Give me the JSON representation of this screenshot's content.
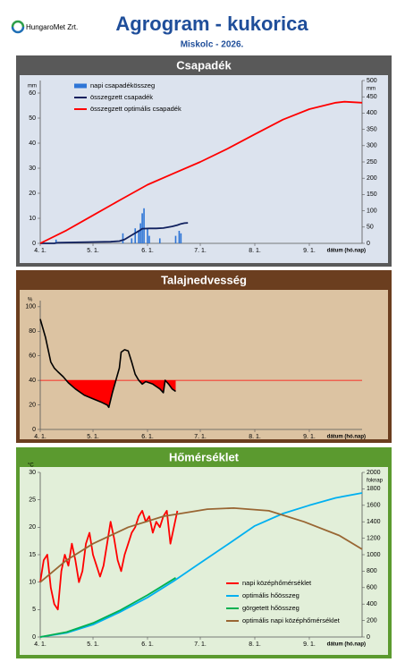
{
  "header": {
    "logo": "HungaroMet Zrt.",
    "title": "Agrogram - kukorica",
    "subtitle": "Miskolc - 2026."
  },
  "chart_data": [
    {
      "type": "combo",
      "title": "Csapadék",
      "header_color": "#595959",
      "plot_color": "#dce3ee",
      "ylabel": "mm",
      "y2label": "mm",
      "xlabel": "dátum (hó.nap)",
      "legend": "upper left",
      "xlim": [
        0,
        183
      ],
      "xticks": [
        {
          "value": 0,
          "label": "4. 1."
        },
        {
          "value": 30,
          "label": "5. 1."
        },
        {
          "value": 61,
          "label": "6. 1."
        },
        {
          "value": 91,
          "label": "7. 1."
        },
        {
          "value": 122,
          "label": "8. 1."
        },
        {
          "value": 153,
          "label": "9. 1."
        }
      ],
      "ylim": [
        0,
        65
      ],
      "yticks": [
        0,
        10,
        20,
        30,
        40,
        50,
        60
      ],
      "y2lim": [
        0,
        500
      ],
      "y2ticks": [
        0,
        50,
        100,
        150,
        200,
        250,
        300,
        350,
        400,
        450,
        500
      ],
      "series": [
        {
          "name": "napi csapadékösszeg",
          "type": "bar",
          "color": "#2e75d6",
          "x": [
            9,
            47,
            52,
            54,
            56,
            57,
            58,
            59,
            61,
            62,
            68,
            77,
            79,
            80
          ],
          "values": [
            1.5,
            4,
            2,
            6,
            5,
            8,
            12,
            14,
            6,
            3,
            2,
            3,
            5,
            4
          ]
        },
        {
          "name": "összegzett csapadék",
          "type": "line",
          "axis": "y2",
          "color": "#10205e",
          "x": [
            0,
            8,
            10,
            20,
            30,
            40,
            45,
            48,
            52,
            56,
            58,
            62,
            66,
            70,
            75,
            78,
            80,
            82,
            84
          ],
          "values": [
            0,
            0,
            2,
            3,
            4,
            5,
            7,
            12,
            25,
            38,
            45,
            46,
            46,
            47,
            52,
            56,
            60,
            62,
            63
          ]
        },
        {
          "name": "összegzett optimális csapadék",
          "type": "line",
          "axis": "y2",
          "color": "#ff0000",
          "x": [
            0,
            15,
            30,
            45,
            61,
            76,
            91,
            107,
            122,
            138,
            153,
            168,
            173,
            183
          ],
          "values": [
            0,
            40,
            86,
            132,
            180,
            215,
            250,
            292,
            335,
            380,
            412,
            432,
            435,
            432
          ]
        }
      ]
    },
    {
      "type": "deficit",
      "title": "Talajnedvesség",
      "header_color": "#6b3e1f",
      "plot_color": "#dcc3a2",
      "ylabel": "%",
      "xlabel": "dátum (hó.nap)",
      "xlim": [
        0,
        183
      ],
      "xticks": [
        {
          "value": 0,
          "label": "4. 1."
        },
        {
          "value": 30,
          "label": "5. 1."
        },
        {
          "value": 61,
          "label": "6. 1."
        },
        {
          "value": 91,
          "label": "7. 1."
        },
        {
          "value": 122,
          "label": "8. 1."
        },
        {
          "value": 153,
          "label": "9. 1."
        }
      ],
      "ylim": [
        0,
        105
      ],
      "yticks": [
        0,
        20,
        40,
        60,
        80,
        100
      ],
      "threshold": 40,
      "threshold_color": "#ff0000",
      "series": [
        {
          "type": "line",
          "color": "#000000",
          "x": [
            0,
            3,
            6,
            8,
            10,
            13,
            16,
            20,
            25,
            30,
            35,
            38,
            39,
            41,
            43,
            45,
            46,
            48,
            50,
            52,
            54,
            56,
            58,
            60,
            62,
            64,
            66,
            68,
            70,
            71,
            73,
            75,
            77
          ],
          "values": [
            90,
            75,
            55,
            50,
            47,
            43,
            38,
            33,
            28,
            25,
            22,
            20,
            18,
            30,
            40,
            50,
            63,
            65,
            64,
            55,
            45,
            40,
            37,
            39,
            38,
            37,
            35,
            33,
            30,
            40,
            37,
            33,
            31
          ]
        }
      ]
    },
    {
      "type": "combo",
      "title": "Hőmérséklet",
      "header_color": "#5b9a2f",
      "plot_color": "#e2efd9",
      "ylabel": "°C",
      "y2label": "foknap",
      "xlabel": "dátum (hó.nap)",
      "legend": "lower right",
      "xlim": [
        0,
        183
      ],
      "xticks": [
        {
          "value": 0,
          "label": "4. 1."
        },
        {
          "value": 30,
          "label": "5. 1."
        },
        {
          "value": 61,
          "label": "6. 1."
        },
        {
          "value": 91,
          "label": "7. 1."
        },
        {
          "value": 122,
          "label": "8. 1."
        },
        {
          "value": 153,
          "label": "9. 1."
        }
      ],
      "ylim": [
        0,
        30
      ],
      "yticks": [
        0,
        5,
        10,
        15,
        20,
        25,
        30
      ],
      "y2lim": [
        0,
        2000
      ],
      "y2ticks": [
        0,
        200,
        400,
        600,
        800,
        1000,
        1200,
        1400,
        1600,
        1800,
        2000
      ],
      "series": [
        {
          "name": "napi középhőmérséklet",
          "type": "line",
          "color": "#ff0000",
          "x": [
            0,
            2,
            4,
            6,
            8,
            10,
            12,
            14,
            16,
            18,
            20,
            22,
            24,
            26,
            28,
            30,
            32,
            34,
            36,
            38,
            40,
            42,
            44,
            46,
            48,
            50,
            52,
            54,
            56,
            58,
            60,
            62,
            64,
            66,
            68,
            70,
            72,
            74,
            76,
            78
          ],
          "values": [
            10,
            14,
            15,
            9,
            6,
            5,
            12,
            15,
            13,
            17,
            14,
            10,
            12,
            17,
            19,
            15,
            13,
            11,
            13,
            17,
            21,
            18,
            14,
            12,
            15,
            17,
            19,
            20,
            22,
            23,
            21,
            22,
            19,
            21,
            20,
            22,
            23,
            17,
            20,
            23
          ]
        },
        {
          "name": "optimális hőösszeg",
          "type": "line",
          "axis": "y2",
          "color": "#00b0f0",
          "x": [
            0,
            15,
            30,
            45,
            61,
            76,
            91,
            107,
            122,
            138,
            153,
            168,
            183
          ],
          "values": [
            0,
            50,
            150,
            300,
            480,
            680,
            900,
            1130,
            1350,
            1500,
            1600,
            1690,
            1750
          ]
        },
        {
          "name": "görgetett hőösszeg",
          "type": "line",
          "axis": "y2",
          "color": "#00b050",
          "x": [
            0,
            15,
            30,
            45,
            61,
            77
          ],
          "values": [
            0,
            60,
            170,
            320,
            510,
            720
          ]
        },
        {
          "name": "optimális napi középhőmérséklet",
          "type": "line",
          "color": "#996633",
          "x": [
            0,
            15,
            30,
            50,
            70,
            95,
            110,
            130,
            150,
            170,
            183
          ],
          "values": [
            10,
            14,
            17,
            20,
            22,
            23.3,
            23.5,
            23,
            21,
            18.5,
            16
          ]
        }
      ]
    }
  ]
}
